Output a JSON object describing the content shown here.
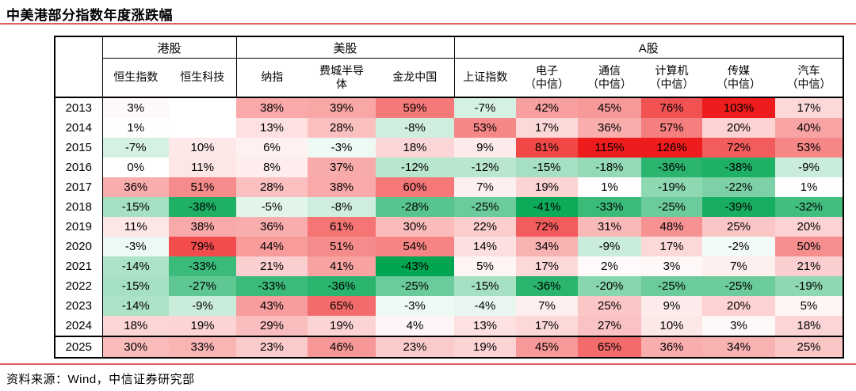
{
  "title": "中美港部分指数年度涨跌幅",
  "footer": {
    "source": "资料来源：Wind，中信证券研究部"
  },
  "colors": {
    "rule": "#e0605c",
    "border": "#000000",
    "heat_positive_max": "#ee1c1c",
    "heat_negative_max": "#00a651",
    "heat_mid": "#ffffff"
  },
  "heat_scale": {
    "positive_cap": 100,
    "negative_cap": 43,
    "midpoint": 0
  },
  "chart_data": {
    "type": "heatmap",
    "title": "中美港部分指数年度涨跌幅",
    "unit": "%",
    "legend_note": "red = positive return, green = negative return, intensity = magnitude",
    "col_groups": [
      {
        "label": "港股",
        "span": 2
      },
      {
        "label": "美股",
        "span": 3
      },
      {
        "label": "A股",
        "span": 6
      }
    ],
    "columns": [
      "恒生指数",
      "恒生科技",
      "纳指",
      "费城半导\n体",
      "金龙中国",
      "上证指数",
      "电子\n（中信）",
      "通信\n（中信）",
      "计算机\n（中信）",
      "传媒\n（中信）",
      "汽车\n（中信）"
    ],
    "years": [
      "2013",
      "2014",
      "2015",
      "2016",
      "2017",
      "2018",
      "2019",
      "2020",
      "2021",
      "2022",
      "2023",
      "2024",
      "2025"
    ],
    "rows": [
      [
        3,
        null,
        38,
        39,
        59,
        -7,
        42,
        45,
        76,
        103,
        17
      ],
      [
        1,
        null,
        13,
        28,
        -8,
        53,
        17,
        36,
        57,
        20,
        40
      ],
      [
        -7,
        10,
        6,
        -3,
        18,
        9,
        81,
        115,
        126,
        72,
        53
      ],
      [
        0,
        11,
        8,
        37,
        -12,
        -12,
        -15,
        -18,
        -36,
        -38,
        -9
      ],
      [
        36,
        51,
        28,
        38,
        60,
        7,
        19,
        1,
        -19,
        -22,
        1
      ],
      [
        -15,
        -38,
        -5,
        -8,
        -28,
        -25,
        -41,
        -33,
        -25,
        -39,
        -32
      ],
      [
        11,
        38,
        36,
        61,
        30,
        22,
        72,
        31,
        48,
        25,
        20
      ],
      [
        -3,
        79,
        44,
        51,
        54,
        14,
        34,
        -9,
        17,
        -2,
        50
      ],
      [
        -14,
        -33,
        21,
        41,
        -43,
        5,
        17,
        2,
        3,
        7,
        21
      ],
      [
        -15,
        -27,
        -33,
        -36,
        -25,
        -15,
        -36,
        -20,
        -25,
        -25,
        -19
      ],
      [
        -14,
        -9,
        43,
        65,
        -3,
        -4,
        7,
        25,
        9,
        20,
        5
      ],
      [
        18,
        19,
        29,
        19,
        4,
        13,
        17,
        27,
        10,
        3,
        18
      ],
      [
        30,
        33,
        23,
        46,
        23,
        19,
        45,
        65,
        36,
        34,
        25
      ]
    ]
  }
}
